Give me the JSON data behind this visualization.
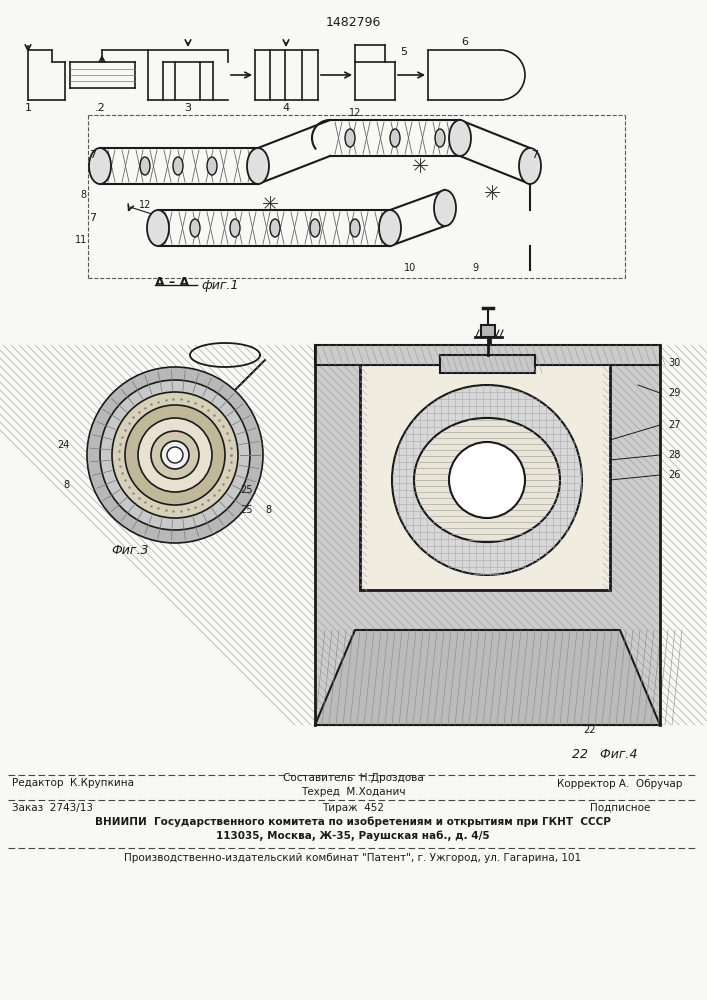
{
  "patent_number": "1482796",
  "bg_color": "#f8f8f5",
  "line_color": "#1a1a1a",
  "fig1_label": "фиг.1",
  "fig3_label": "Фиг.3",
  "fig4_label": "Фиг.4",
  "section_label": "А – А",
  "footer_line1_col1": "Редактор  К.Крупкина",
  "footer_line1_col2": "Составитель  Н.Дроздова",
  "footer_line1_col3": "Корректор А.  Обручар",
  "footer_line2_col2": "Техред  М.Ходанич",
  "footer_line3_col1": "Заказ  2743/13",
  "footer_line3_col2": "Тираж  452",
  "footer_line3_col3": "Подписное",
  "footer_line4": "ВНИИПИ  Государственного комитета по изобретениям и открытиям при ГКНТ  СССР",
  "footer_line5": "113035, Москва, Ж-35, Раушская наб., д. 4/5",
  "footer_line6": "Производственно-издательский комбинат \"Патент\", г. Ужгород, ул. Гагарина, 101"
}
